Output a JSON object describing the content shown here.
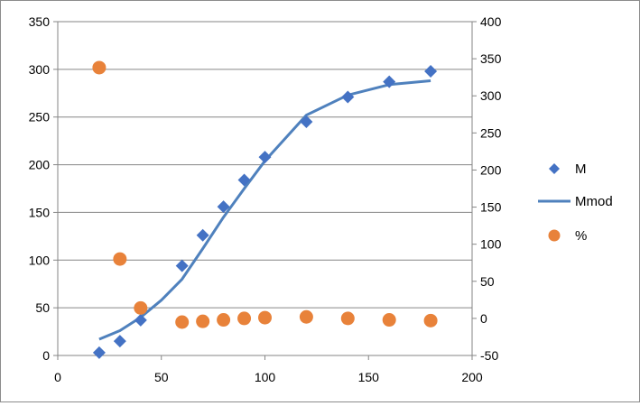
{
  "chart_data": {
    "type": "scatter",
    "title": "",
    "xlabel": "",
    "ylabel": "",
    "xlim": [
      0,
      200
    ],
    "ylim_left": [
      0,
      350
    ],
    "ylim_right": [
      -50,
      400
    ],
    "x_ticks": [
      "0",
      "50",
      "100",
      "150",
      "200"
    ],
    "y_left_ticks": [
      "0",
      "50",
      "100",
      "150",
      "200",
      "250",
      "300",
      "350"
    ],
    "y_right_ticks": [
      "-50",
      "0",
      "50",
      "100",
      "150",
      "200",
      "250",
      "300",
      "350",
      "400"
    ],
    "grid": true,
    "legend_position": "right",
    "series": [
      {
        "name": "M",
        "style": "diamond-markers",
        "axis": "left",
        "color": "#4472C4",
        "x": [
          20,
          30,
          40,
          60,
          70,
          80,
          90,
          100,
          120,
          140,
          160,
          180
        ],
        "y": [
          3,
          15,
          37,
          94,
          126,
          156,
          184,
          208,
          245,
          271,
          287,
          298
        ]
      },
      {
        "name": "Mmod",
        "style": "line",
        "axis": "left",
        "color": "#4F81BD",
        "x": [
          20,
          30,
          40,
          50,
          60,
          70,
          80,
          90,
          100,
          120,
          140,
          160,
          180
        ],
        "y": [
          17,
          26,
          40,
          58,
          80,
          112,
          145,
          175,
          204,
          252,
          273,
          284,
          288
        ]
      },
      {
        "name": "%",
        "style": "circle-markers",
        "axis": "right",
        "color": "#E8823A",
        "x": [
          20,
          30,
          40,
          60,
          70,
          80,
          90,
          100,
          120,
          140,
          160,
          180
        ],
        "y": [
          338,
          80,
          14,
          -5,
          -4,
          -2,
          0,
          1,
          2,
          0,
          -2,
          -3
        ]
      }
    ]
  }
}
